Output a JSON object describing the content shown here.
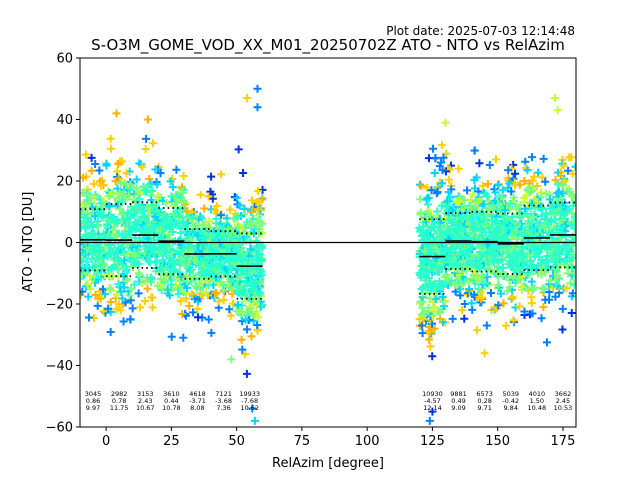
{
  "chart_data": {
    "type": "scatter",
    "title": "S-O3M_GOME_VOD_XX_M01_20250702Z ATO - NTO vs RelAzim",
    "plot_date": "Plot date: 2025-07-03 12:14:48",
    "xlabel": "RelAzim [degree]",
    "ylabel": "ATO - NTO [DU]",
    "xlim": [
      -10,
      180
    ],
    "ylim": [
      -60,
      60
    ],
    "xticks": [
      0,
      25,
      50,
      75,
      100,
      125,
      150,
      175
    ],
    "yticks": [
      -60,
      -40,
      -20,
      0,
      20,
      40,
      60
    ],
    "zero_line": 0,
    "clusters": [
      {
        "name": "left",
        "xrange": [
          -10,
          59
        ]
      },
      {
        "name": "right",
        "xrange": [
          120,
          180
        ]
      }
    ],
    "bins": [
      {
        "x0": -10,
        "x1": 0,
        "count": "3045",
        "mean": "0.86",
        "std": "9.97",
        "mean_v": 0.86,
        "std_v": 9.97
      },
      {
        "x0": 0,
        "x1": 10,
        "count": "2982",
        "mean": "0.78",
        "std": "11.75",
        "mean_v": 0.78,
        "std_v": 11.75
      },
      {
        "x0": 10,
        "x1": 20,
        "count": "3153",
        "mean": "2.43",
        "std": "10.67",
        "mean_v": 2.43,
        "std_v": 10.67
      },
      {
        "x0": 20,
        "x1": 30,
        "count": "3610",
        "mean": "0.44",
        "std": "10.78",
        "mean_v": 0.44,
        "std_v": 10.78
      },
      {
        "x0": 30,
        "x1": 40,
        "count": "4618",
        "mean": "-3.71",
        "std": "8.08",
        "mean_v": -3.71,
        "std_v": 8.08
      },
      {
        "x0": 40,
        "x1": 50,
        "count": "7121",
        "mean": "-3.68",
        "std": "7.36",
        "mean_v": -3.68,
        "std_v": 7.36
      },
      {
        "x0": 50,
        "x1": 60,
        "count": "19933",
        "mean": "-7.68",
        "std": "10.62",
        "mean_v": -7.68,
        "std_v": 10.62
      },
      {
        "x0": 120,
        "x1": 130,
        "count": "10930",
        "mean": "-4.57",
        "std": "12.14",
        "mean_v": -4.57,
        "std_v": 12.14
      },
      {
        "x0": 130,
        "x1": 140,
        "count": "9881",
        "mean": "0.49",
        "std": "9.09",
        "mean_v": 0.49,
        "std_v": 9.09
      },
      {
        "x0": 140,
        "x1": 150,
        "count": "6573",
        "mean": "0.28",
        "std": "9.71",
        "mean_v": 0.28,
        "std_v": 9.71
      },
      {
        "x0": 150,
        "x1": 160,
        "count": "5039",
        "mean": "-0.42",
        "std": "9.84",
        "mean_v": -0.42,
        "std_v": 9.84
      },
      {
        "x0": 160,
        "x1": 170,
        "count": "4010",
        "mean": "1.50",
        "std": "10.48",
        "mean_v": 1.5,
        "std_v": 10.48
      },
      {
        "x0": 170,
        "x1": 180,
        "count": "3662",
        "mean": "2.45",
        "std": "10.53",
        "mean_v": 2.45,
        "std_v": 10.53
      }
    ],
    "colors": {
      "dense": "#29ffce",
      "mid": "#7dff7a",
      "yellowgreen": "#c4ff33",
      "yellow": "#ffd000",
      "orange": "#ffb000",
      "cyan": "#00d4ff",
      "blue": "#0080ff",
      "darkblue": "#0030e0"
    }
  }
}
